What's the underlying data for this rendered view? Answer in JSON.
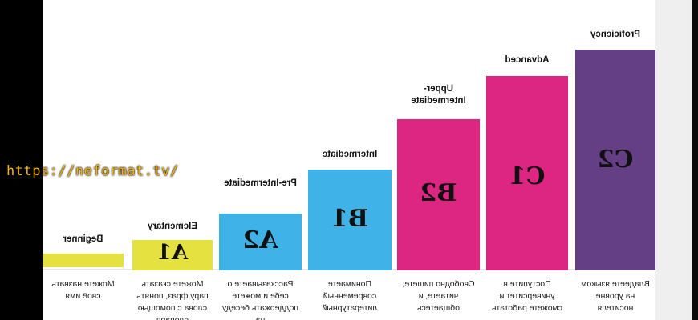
{
  "watermark": "https://neformat.tv/",
  "colors": {
    "c2": "#643f86",
    "c1": "#dd2681",
    "b2": "#dd2681",
    "b1": "#3fb3e8",
    "a2": "#3fb3e8",
    "a1": "#e4e140",
    "beginner": "#e4e140"
  },
  "levels": [
    {
      "code": "C2",
      "label": "Proficiency",
      "desc": "Владеете языком на уровне носителя",
      "height_fraction": 1.0
    },
    {
      "code": "C1",
      "label": "Advanced",
      "desc": "Поступите в университет и сможете работать",
      "height_fraction": 0.87
    },
    {
      "code": "B2",
      "label": "Upper-Intermediate",
      "desc": "Свободно пишете, читаете, и общаетесь",
      "height_fraction": 0.68
    },
    {
      "code": "B1",
      "label": "Intermediate",
      "desc": "Понимаете современный литературный",
      "height_fraction": 0.45
    },
    {
      "code": "A2",
      "label": "Pre-Intermediate",
      "desc": "Рассказываете о себе и можете поддержать беседу на",
      "height_fraction": 0.25
    },
    {
      "code": "A1",
      "label": "Elementary",
      "desc": "Можете сказать пару фраз, понять слова с помощью словаря",
      "height_fraction": 0.13
    },
    {
      "code": "",
      "label": "Beginner",
      "desc": "Можете назвать своё имя",
      "height_fraction": 0.06
    }
  ]
}
